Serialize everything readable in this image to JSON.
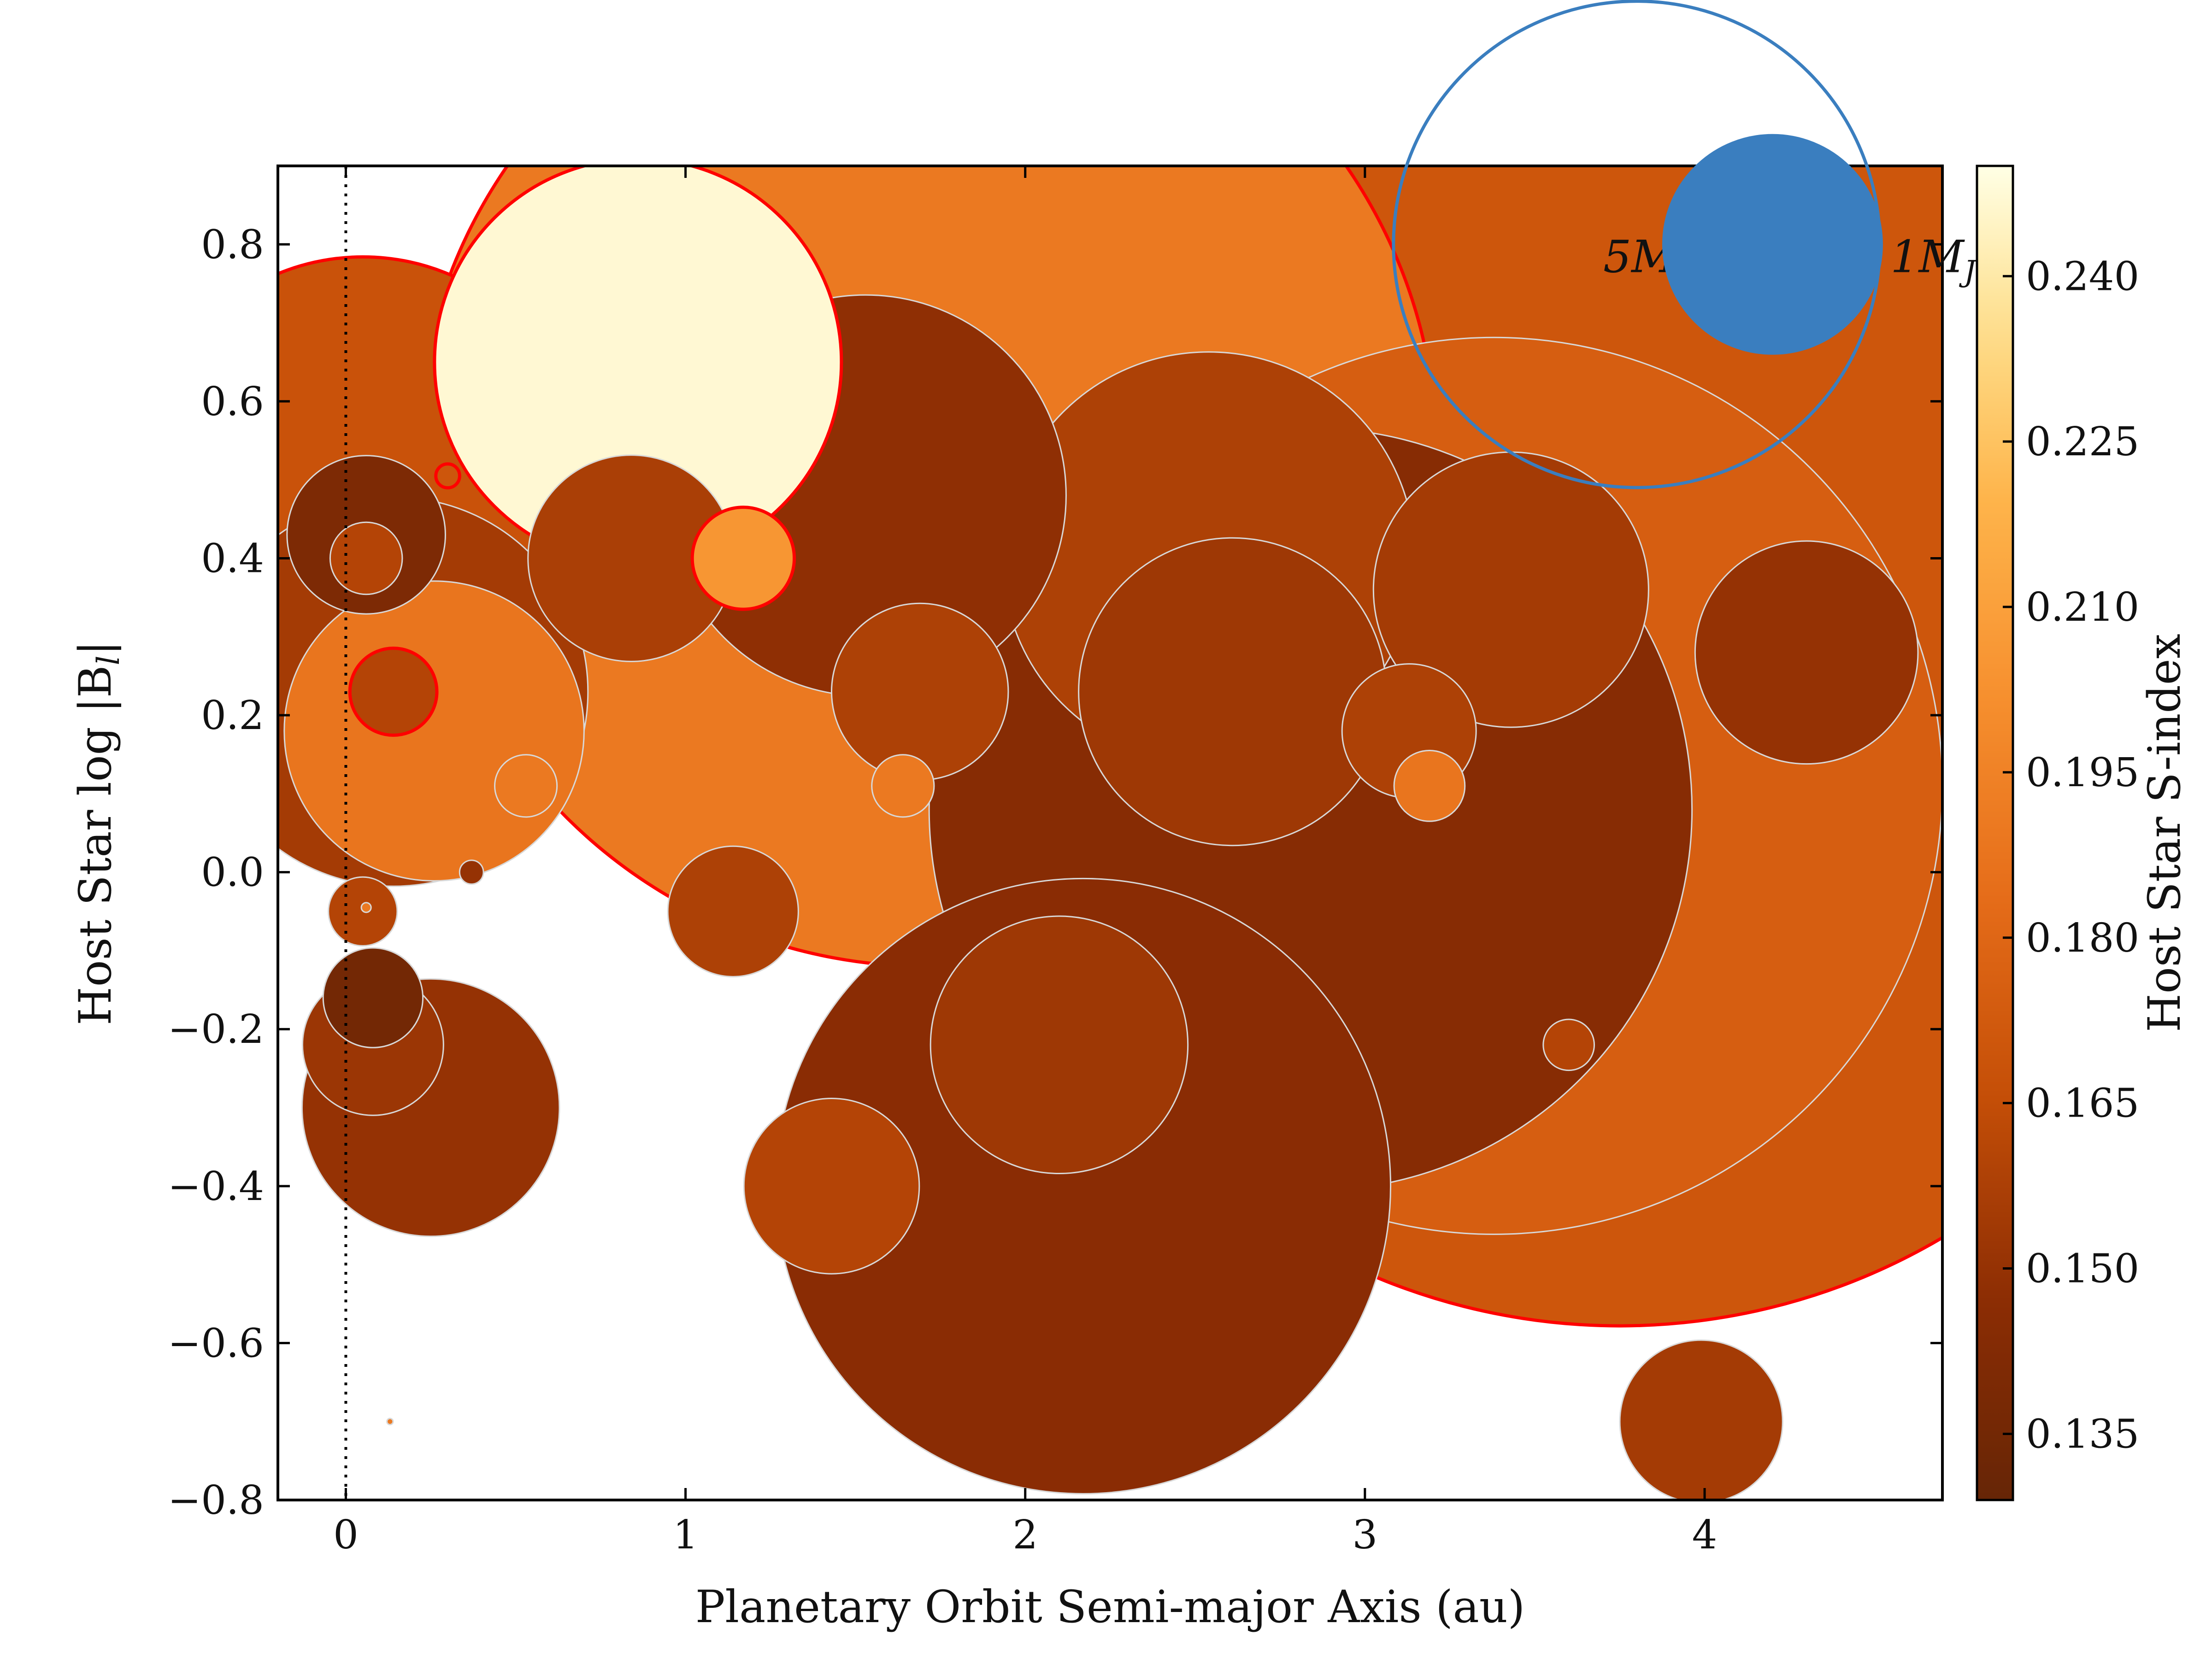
{
  "chart_data": {
    "type": "scatter",
    "xlabel": "Planetary Orbit Semi-major Axis (au)",
    "ylabel": "Host Star log |B",
    "ylabel_sub": "l",
    "ylabel_end": "|",
    "xlim": [
      -0.2,
      4.7
    ],
    "ylim": [
      -0.8,
      0.9
    ],
    "xticks": [
      0,
      1,
      2,
      3,
      4
    ],
    "xtick_labels": [
      "0",
      "1",
      "2",
      "3",
      "4"
    ],
    "yticks": [
      -0.8,
      -0.6,
      -0.4,
      -0.2,
      0.0,
      0.2,
      0.4,
      0.6,
      0.8
    ],
    "ytick_labels": [
      "−0.8",
      "−0.6",
      "−0.4",
      "−0.2",
      "0.0",
      "0.2",
      "0.4",
      "0.6",
      "0.8"
    ],
    "reference_line_x": 0,
    "colorbar": {
      "label": "Host Star S-index",
      "range": [
        0.129,
        0.25
      ],
      "ticks": [
        0.135,
        0.15,
        0.165,
        0.18,
        0.195,
        0.21,
        0.225,
        0.24
      ],
      "tick_labels": [
        "0.135",
        "0.150",
        "0.165",
        "0.180",
        "0.195",
        "0.210",
        "0.225",
        "0.240"
      ]
    },
    "size_legend": [
      {
        "label": "5M",
        "sub": "J",
        "mass": 5,
        "filled": false,
        "x": 3.8,
        "y": 0.8
      },
      {
        "label": "1M",
        "sub": "J",
        "mass": 1,
        "filled": true,
        "x": 4.2,
        "y": 0.8
      }
    ],
    "legend_color": "#3a7ebf",
    "highlight_color": "#ff0000",
    "points": [
      {
        "x": 3.75,
        "y": 0.23,
        "mass": 34.0,
        "s_index": 0.17,
        "highlight": true
      },
      {
        "x": 1.71,
        "y": 0.53,
        "mass": 22.0,
        "s_index": 0.19,
        "highlight": true
      },
      {
        "x": 3.38,
        "y": 0.11,
        "mass": 17.0,
        "s_index": 0.175,
        "highlight": false
      },
      {
        "x": 2.84,
        "y": 0.08,
        "mass": 12.3,
        "s_index": 0.145,
        "highlight": false
      },
      {
        "x": 2.17,
        "y": -0.4,
        "mass": 8.0,
        "s_index": 0.146,
        "highlight": false
      },
      {
        "x": 0.05,
        "y": 0.5,
        "mass": 4.2,
        "s_index": 0.168,
        "highlight": true
      },
      {
        "x": 2.54,
        "y": 0.4,
        "mass": 3.6,
        "s_index": 0.158,
        "highlight": false
      },
      {
        "x": 1.53,
        "y": 0.48,
        "mass": 3.4,
        "s_index": 0.148,
        "highlight": false
      },
      {
        "x": 0.86,
        "y": 0.65,
        "mass": 3.5,
        "s_index": 0.247,
        "highlight": true
      },
      {
        "x": 0.14,
        "y": 0.23,
        "mass": 3.2,
        "s_index": 0.155,
        "highlight": false
      },
      {
        "x": 0.26,
        "y": 0.18,
        "mass": 1.9,
        "s_index": 0.188,
        "highlight": false
      },
      {
        "x": 2.61,
        "y": 0.23,
        "mass": 2.0,
        "s_index": 0.153,
        "highlight": false
      },
      {
        "x": 0.25,
        "y": -0.3,
        "mass": 1.4,
        "s_index": 0.15,
        "highlight": false
      },
      {
        "x": 2.1,
        "y": -0.22,
        "mass": 1.4,
        "s_index": 0.153,
        "highlight": false
      },
      {
        "x": 3.43,
        "y": 0.36,
        "mass": 1.6,
        "s_index": 0.155,
        "highlight": false
      },
      {
        "x": 4.3,
        "y": 0.28,
        "mass": 1.05,
        "s_index": 0.15,
        "highlight": false
      },
      {
        "x": 0.84,
        "y": 0.4,
        "mass": 0.9,
        "s_index": 0.157,
        "highlight": false
      },
      {
        "x": 1.69,
        "y": 0.23,
        "mass": 0.66,
        "s_index": 0.158,
        "highlight": false
      },
      {
        "x": 1.43,
        "y": -0.4,
        "mass": 0.65,
        "s_index": 0.16,
        "highlight": false
      },
      {
        "x": 3.99,
        "y": -0.7,
        "mass": 0.56,
        "s_index": 0.155,
        "highlight": false
      },
      {
        "x": 0.06,
        "y": 0.43,
        "mass": 0.53,
        "s_index": 0.14,
        "highlight": false
      },
      {
        "x": 0.08,
        "y": -0.22,
        "mass": 0.42,
        "s_index": 0.152,
        "highlight": false
      },
      {
        "x": 1.14,
        "y": -0.05,
        "mass": 0.36,
        "s_index": 0.158,
        "highlight": false
      },
      {
        "x": 3.13,
        "y": 0.18,
        "mass": 0.38,
        "s_index": 0.158,
        "highlight": false
      },
      {
        "x": 0.08,
        "y": -0.16,
        "mass": 0.21,
        "s_index": 0.135,
        "highlight": false
      },
      {
        "x": 1.17,
        "y": 0.4,
        "mass": 0.22,
        "s_index": 0.205,
        "highlight": true
      },
      {
        "x": 0.14,
        "y": 0.23,
        "mass": 0.16,
        "s_index": 0.16,
        "highlight": true
      },
      {
        "x": 0.06,
        "y": 0.4,
        "mass": 0.11,
        "s_index": 0.16,
        "highlight": false
      },
      {
        "x": 0.05,
        "y": -0.05,
        "mass": 0.1,
        "s_index": 0.16,
        "highlight": false
      },
      {
        "x": 0.53,
        "y": 0.11,
        "mass": 0.082,
        "s_index": 0.19,
        "highlight": false
      },
      {
        "x": 1.64,
        "y": 0.11,
        "mass": 0.082,
        "s_index": 0.19,
        "highlight": false
      },
      {
        "x": 3.19,
        "y": 0.11,
        "mass": 0.106,
        "s_index": 0.188,
        "highlight": false
      },
      {
        "x": 3.6,
        "y": -0.22,
        "mass": 0.055,
        "s_index": 0.16,
        "highlight": false
      },
      {
        "x": 0.37,
        "y": 0.0,
        "mass": 0.012,
        "s_index": 0.15,
        "highlight": false
      },
      {
        "x": 0.3,
        "y": 0.505,
        "mass": 0.012,
        "s_index": 0.17,
        "highlight": true
      },
      {
        "x": 0.06,
        "y": -0.045,
        "mass": 0.002,
        "s_index": 0.19,
        "highlight": false
      },
      {
        "x": 0.13,
        "y": -0.7,
        "mass": 0.0008,
        "s_index": 0.19,
        "highlight": false
      }
    ]
  }
}
